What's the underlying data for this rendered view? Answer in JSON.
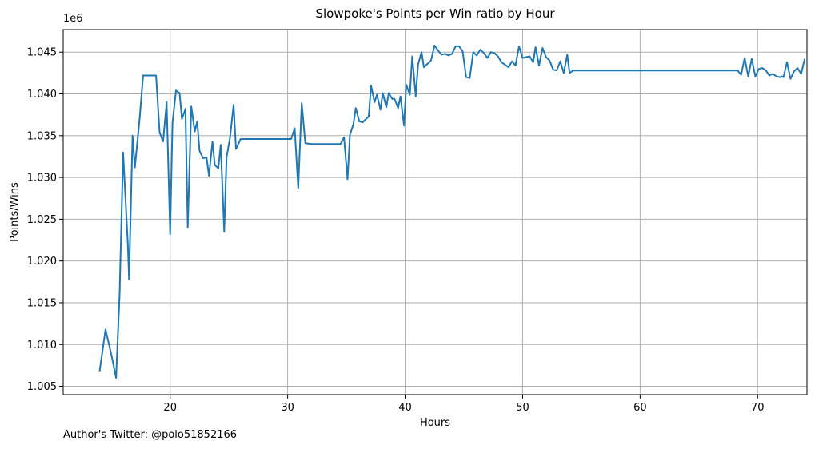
{
  "chart_data": {
    "type": "line",
    "title": "Slowpoke's Points per Win ratio by Hour",
    "xlabel": "Hours",
    "ylabel": "Points/Wins",
    "y_offset_label": "1e6",
    "xlim": [
      10.9,
      74.2
    ],
    "ylim": [
      1004.0,
      1047.7
    ],
    "x_ticks": [
      20,
      30,
      40,
      50,
      60,
      70
    ],
    "x_tick_labels": [
      "20",
      "30",
      "40",
      "50",
      "60",
      "70"
    ],
    "y_ticks": [
      1005,
      1010,
      1015,
      1020,
      1025,
      1030,
      1035,
      1040,
      1045
    ],
    "y_tick_labels": [
      "1.005",
      "1.010",
      "1.015",
      "1.020",
      "1.025",
      "1.030",
      "1.035",
      "1.040",
      "1.045"
    ],
    "grid": true,
    "series": [
      {
        "name": "",
        "color": "#1f77b4",
        "points": [
          [
            14.0,
            1006.8
          ],
          [
            14.5,
            1011.8
          ],
          [
            15.0,
            1008.8
          ],
          [
            15.4,
            1006.0
          ],
          [
            15.7,
            1016.0
          ],
          [
            16.0,
            1033.0
          ],
          [
            16.4,
            1022.0
          ],
          [
            16.5,
            1017.8
          ],
          [
            16.8,
            1035.0
          ],
          [
            17.0,
            1031.2
          ],
          [
            17.4,
            1037.0
          ],
          [
            17.7,
            1042.2
          ],
          [
            18.0,
            1042.2
          ],
          [
            18.4,
            1042.2
          ],
          [
            18.8,
            1042.2
          ],
          [
            19.1,
            1035.4
          ],
          [
            19.4,
            1034.3
          ],
          [
            19.7,
            1039.0
          ],
          [
            20.0,
            1023.2
          ],
          [
            20.2,
            1036.5
          ],
          [
            20.5,
            1040.4
          ],
          [
            20.8,
            1040.1
          ],
          [
            21.0,
            1037.0
          ],
          [
            21.3,
            1038.2
          ],
          [
            21.5,
            1024.0
          ],
          [
            21.8,
            1038.5
          ],
          [
            22.1,
            1035.5
          ],
          [
            22.3,
            1036.7
          ],
          [
            22.5,
            1033.2
          ],
          [
            22.8,
            1032.3
          ],
          [
            23.1,
            1032.4
          ],
          [
            23.3,
            1030.2
          ],
          [
            23.6,
            1034.3
          ],
          [
            23.8,
            1031.5
          ],
          [
            24.1,
            1031.1
          ],
          [
            24.3,
            1033.9
          ],
          [
            24.6,
            1023.5
          ],
          [
            24.8,
            1032.4
          ],
          [
            25.1,
            1034.8
          ],
          [
            25.4,
            1038.7
          ],
          [
            25.6,
            1033.4
          ],
          [
            26.0,
            1034.6
          ],
          [
            26.5,
            1034.6
          ],
          [
            27.5,
            1034.6
          ],
          [
            28.5,
            1034.6
          ],
          [
            29.5,
            1034.6
          ],
          [
            30.3,
            1034.6
          ],
          [
            30.6,
            1035.9
          ],
          [
            30.9,
            1028.7
          ],
          [
            31.2,
            1038.9
          ],
          [
            31.5,
            1034.1
          ],
          [
            32.0,
            1034.0
          ],
          [
            33.0,
            1034.0
          ],
          [
            34.0,
            1034.0
          ],
          [
            34.5,
            1034.0
          ],
          [
            34.8,
            1034.8
          ],
          [
            35.1,
            1029.8
          ],
          [
            35.3,
            1035.1
          ],
          [
            35.6,
            1036.4
          ],
          [
            35.8,
            1038.3
          ],
          [
            36.1,
            1036.7
          ],
          [
            36.4,
            1036.6
          ],
          [
            36.6,
            1036.9
          ],
          [
            36.9,
            1037.3
          ],
          [
            37.1,
            1041.0
          ],
          [
            37.4,
            1039.0
          ],
          [
            37.6,
            1039.9
          ],
          [
            37.9,
            1038.1
          ],
          [
            38.1,
            1040.1
          ],
          [
            38.4,
            1038.4
          ],
          [
            38.6,
            1040.1
          ],
          [
            38.9,
            1039.4
          ],
          [
            39.1,
            1039.4
          ],
          [
            39.4,
            1038.3
          ],
          [
            39.6,
            1039.7
          ],
          [
            39.9,
            1036.2
          ],
          [
            40.1,
            1041.1
          ],
          [
            40.4,
            1039.9
          ],
          [
            40.6,
            1044.5
          ],
          [
            40.9,
            1039.7
          ],
          [
            41.1,
            1043.5
          ],
          [
            41.4,
            1045.0
          ],
          [
            41.6,
            1043.2
          ],
          [
            41.9,
            1043.6
          ],
          [
            42.2,
            1044.0
          ],
          [
            42.5,
            1045.8
          ],
          [
            42.8,
            1045.2
          ],
          [
            43.1,
            1044.7
          ],
          [
            43.4,
            1044.8
          ],
          [
            43.7,
            1044.6
          ],
          [
            44.0,
            1044.8
          ],
          [
            44.3,
            1045.7
          ],
          [
            44.6,
            1045.7
          ],
          [
            44.9,
            1045.1
          ],
          [
            45.2,
            1042.0
          ],
          [
            45.5,
            1041.9
          ],
          [
            45.8,
            1045.0
          ],
          [
            46.1,
            1044.6
          ],
          [
            46.4,
            1045.3
          ],
          [
            46.7,
            1044.9
          ],
          [
            47.0,
            1044.3
          ],
          [
            47.3,
            1045.0
          ],
          [
            47.6,
            1044.9
          ],
          [
            47.9,
            1044.5
          ],
          [
            48.2,
            1043.8
          ],
          [
            48.5,
            1043.5
          ],
          [
            48.8,
            1043.2
          ],
          [
            49.1,
            1043.9
          ],
          [
            49.4,
            1043.4
          ],
          [
            49.7,
            1045.7
          ],
          [
            50.0,
            1044.3
          ],
          [
            50.3,
            1044.4
          ],
          [
            50.6,
            1044.5
          ],
          [
            50.9,
            1043.8
          ],
          [
            51.1,
            1045.6
          ],
          [
            51.4,
            1043.4
          ],
          [
            51.7,
            1045.5
          ],
          [
            52.0,
            1044.4
          ],
          [
            52.3,
            1044.0
          ],
          [
            52.6,
            1042.9
          ],
          [
            52.9,
            1042.8
          ],
          [
            53.2,
            1043.9
          ],
          [
            53.5,
            1042.5
          ],
          [
            53.8,
            1044.7
          ],
          [
            54.0,
            1042.5
          ],
          [
            54.3,
            1042.8
          ],
          [
            55.0,
            1042.8
          ],
          [
            56.0,
            1042.8
          ],
          [
            58.0,
            1042.8
          ],
          [
            60.0,
            1042.8
          ],
          [
            62.0,
            1042.8
          ],
          [
            64.0,
            1042.8
          ],
          [
            66.0,
            1042.8
          ],
          [
            67.5,
            1042.8
          ],
          [
            68.3,
            1042.8
          ],
          [
            68.6,
            1042.3
          ],
          [
            68.9,
            1044.3
          ],
          [
            69.2,
            1042.1
          ],
          [
            69.5,
            1044.2
          ],
          [
            69.8,
            1042.1
          ],
          [
            70.1,
            1043.0
          ],
          [
            70.4,
            1043.1
          ],
          [
            70.7,
            1042.8
          ],
          [
            71.0,
            1042.2
          ],
          [
            71.3,
            1042.4
          ],
          [
            71.6,
            1042.1
          ],
          [
            71.9,
            1042.0
          ],
          [
            72.2,
            1042.0
          ],
          [
            72.5,
            1043.8
          ],
          [
            72.8,
            1041.8
          ],
          [
            73.1,
            1042.7
          ],
          [
            73.4,
            1043.1
          ],
          [
            73.7,
            1042.4
          ],
          [
            74.0,
            1044.2
          ],
          [
            72.1,
            1042.1
          ]
        ]
      }
    ]
  },
  "footer": {
    "text": "Author's Twitter: @polo51852166"
  }
}
